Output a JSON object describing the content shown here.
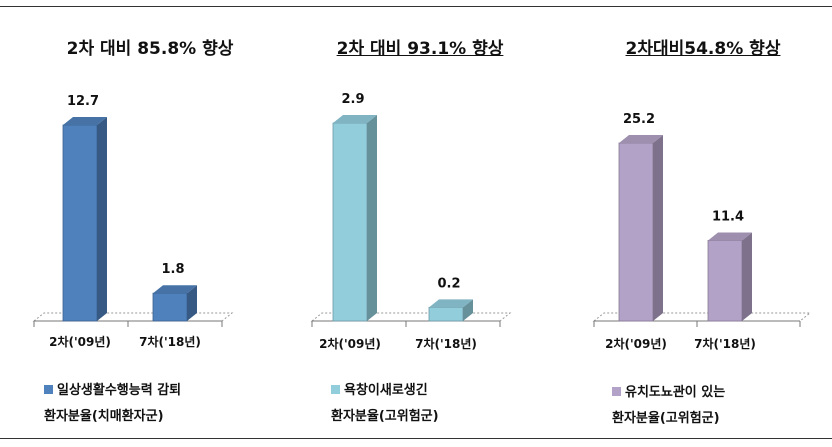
{
  "chart_data": [
    {
      "type": "bar",
      "title": "2차 대비 85.8% 향상",
      "categories": [
        "2차('09년)",
        "7차('18년)"
      ],
      "values": [
        12.7,
        1.8
      ],
      "value_labels": [
        "12.7",
        "1.8"
      ],
      "legend": [
        "일상생활수행능력 감퇴",
        "환자분율(치매환자군)"
      ],
      "color": "#4f81bd",
      "grid": false
    },
    {
      "type": "bar",
      "title": "2차 대비 93.1% 향상",
      "categories": [
        "2차('09년)",
        "7차('18년)"
      ],
      "values": [
        2.9,
        0.2
      ],
      "value_labels": [
        "2.9",
        "0.2"
      ],
      "legend": [
        "욕창이새로생긴",
        "환자분율(고위험군)"
      ],
      "color": "#92cddc",
      "grid": false
    },
    {
      "type": "bar",
      "title": "2차대비54.8% 향상",
      "categories": [
        "2차('09년)",
        "7차('18년)"
      ],
      "values": [
        25.2,
        11.4
      ],
      "value_labels": [
        "25.2",
        "11.4"
      ],
      "legend": [
        "유치도뇨관이 있는",
        "환자분율(고위험군)"
      ],
      "color": "#b3a2c7",
      "grid": false
    }
  ]
}
